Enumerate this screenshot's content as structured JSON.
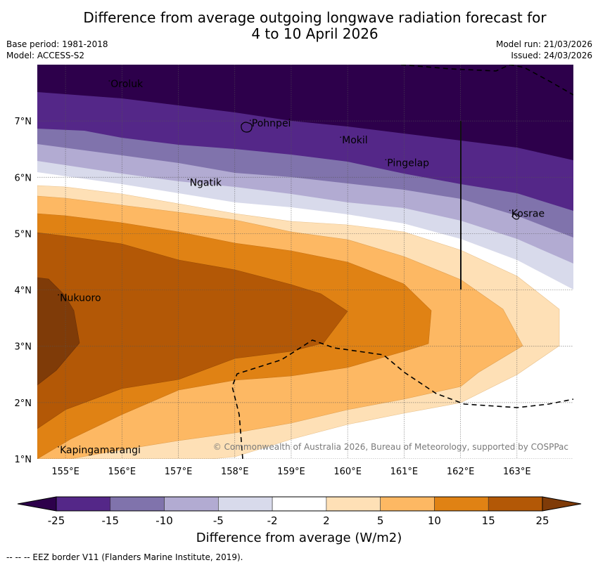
{
  "header": {
    "title_line1": "Difference from average outgoing longwave radiation forecast for",
    "title_line2": "4 to 10 April 2026",
    "base_period": "Base period: 1981-2018",
    "model": "Model: ACCESS-S2",
    "model_run": "Model run: 21/03/2026",
    "issued": "Issued: 24/03/2026"
  },
  "map": {
    "lon_range": [
      154.5,
      164.0
    ],
    "lat_range": [
      1.0,
      8.0
    ],
    "lon_ticks": [
      "155°E",
      "156°E",
      "157°E",
      "158°E",
      "159°E",
      "160°E",
      "161°E",
      "162°E",
      "163°E"
    ],
    "lat_ticks": [
      "1°N",
      "2°N",
      "3°N",
      "4°N",
      "5°N",
      "6°N",
      "7°N"
    ],
    "places": [
      {
        "name": "Oroluk",
        "lon": 155.8,
        "lat": 7.6
      },
      {
        "name": "Pohnpei",
        "lon": 158.3,
        "lat": 6.9
      },
      {
        "name": "Mokil",
        "lon": 159.9,
        "lat": 6.6
      },
      {
        "name": "Pingelap",
        "lon": 160.7,
        "lat": 6.2
      },
      {
        "name": "Ngatik",
        "lon": 157.2,
        "lat": 5.85
      },
      {
        "name": "Kosrae",
        "lon": 162.9,
        "lat": 5.3
      },
      {
        "name": "Nukuoro",
        "lon": 154.9,
        "lat": 3.8
      },
      {
        "name": "Kapingamarangi",
        "lon": 154.9,
        "lat": 1.1
      }
    ],
    "copyright": "© Commonwealth of Australia 2026, Bureau of Meteorology, supported by COSPPac"
  },
  "legend": {
    "boundaries": [
      "-25",
      "-15",
      "-10",
      "-5",
      "-2",
      "2",
      "5",
      "10",
      "15",
      "25"
    ],
    "colors": {
      "under": "#2d004b",
      "bins": [
        "#542788",
        "#8073ac",
        "#b2abd2",
        "#d8daeb",
        "#ffffff",
        "#fee0b6",
        "#fdb863",
        "#e08214",
        "#b35806"
      ],
      "over": "#7f3b08"
    },
    "label": "Difference from average (W/m2)"
  },
  "footnote": "--  --  -- EEZ border V11 (Flanders Marine Institute, 2019).",
  "chart_data": {
    "type": "heatmap",
    "title": "Difference from average outgoing longwave radiation forecast for 4 to 10 April 2026",
    "units": "W/m2",
    "levels": [
      -25,
      -15,
      -10,
      -5,
      -2,
      2,
      5,
      10,
      15,
      25
    ],
    "region": {
      "lon": [
        154.5,
        164.0
      ],
      "lat": [
        1.0,
        8.0
      ]
    },
    "bands": [
      {
        "range": "< -25",
        "color": "#2d004b",
        "description": "north of ~7.5°N (west) sloping to ~6.6°N (east)"
      },
      {
        "range": "-25 to -15",
        "color": "#542788",
        "upper_lat_west": 7.5,
        "upper_lat_east": 6.6
      },
      {
        "range": "-15 to -10",
        "color": "#8073ac",
        "upper_lat_west": 6.85,
        "upper_lat_east": 5.4
      },
      {
        "range": "-10 to -5",
        "color": "#b2abd2",
        "upper_lat_west": 6.55,
        "upper_lat_east": 4.9
      },
      {
        "range": "-5 to -2",
        "color": "#d8daeb",
        "upper_lat_west": 6.3,
        "upper_lat_east": 4.5
      },
      {
        "range": "-2 to 2",
        "color": "#ffffff",
        "upper_lat_west": 6.1,
        "upper_lat_east": 4.0
      },
      {
        "range": "2 to 5",
        "color": "#fee0b6",
        "peak_lon": 163.8,
        "peak_lat": 3.3
      },
      {
        "range": "5 to 10",
        "color": "#fdb863",
        "peak_lon": 163.1,
        "peak_lat": 3.1
      },
      {
        "range": "10 to 15",
        "color": "#e08214",
        "peak_lon": 161.5,
        "peak_lat": 3.3
      },
      {
        "range": "15 to 25",
        "color": "#b35806",
        "peak_lon": 160.0,
        "peak_lat": 3.6
      },
      {
        "range": "> 25",
        "color": "#7f3b08",
        "peak_lon": 155.2,
        "peak_lat": 3.0
      }
    ]
  }
}
